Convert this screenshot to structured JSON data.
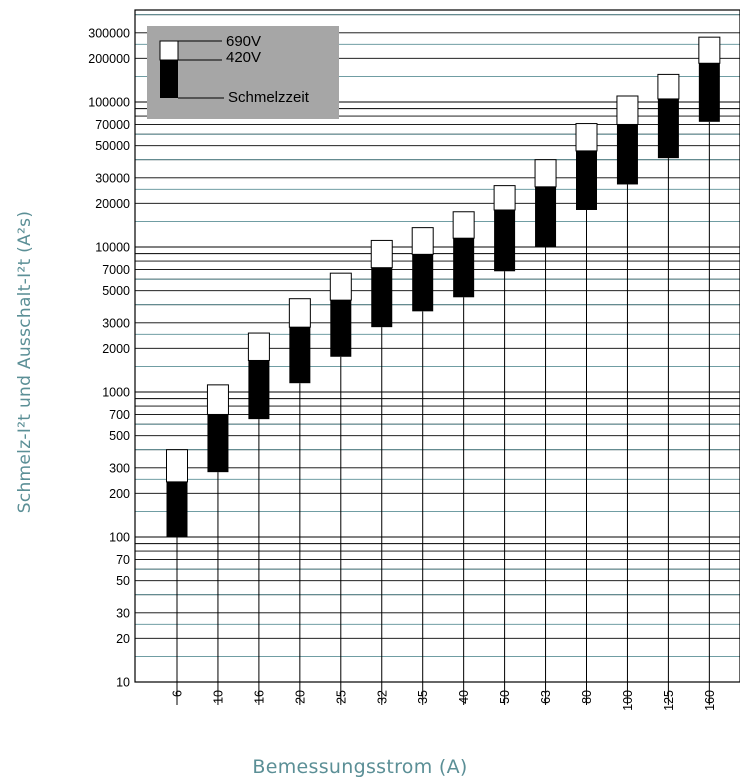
{
  "chart_data": {
    "type": "bar",
    "subtype": "floating-range",
    "xlabel": "Bemessungsstrom (A)",
    "ylabel": "Schmelz-I²t und Ausschalt-I²t (A²s)",
    "yscale": "log",
    "ylim": [
      10,
      400000
    ],
    "grid": true,
    "legend": {
      "position": "top-left",
      "entries": [
        "690V",
        "420V",
        "Schmelzzeit"
      ]
    },
    "y_tick_labels": [
      "300000",
      "200000",
      "100000",
      "70000",
      "50000",
      "30000",
      "20000",
      "10000",
      "7000",
      "5000",
      "3000",
      "2000",
      "1000",
      "700",
      "500",
      "300",
      "200",
      "100",
      "70",
      "50",
      "30",
      "20",
      "10"
    ],
    "categories": [
      "6",
      "10",
      "16",
      "20",
      "25",
      "32",
      "35",
      "40",
      "50",
      "63",
      "80",
      "100",
      "125",
      "160"
    ],
    "series": [
      {
        "name": "Schmelzzeit",
        "values": [
          100,
          280,
          650,
          1150,
          1750,
          2800,
          3600,
          4500,
          6800,
          10000,
          18000,
          27000,
          41000,
          73000
        ]
      },
      {
        "name": "420V",
        "values": [
          240,
          700,
          1650,
          2800,
          4300,
          7200,
          8900,
          11500,
          18000,
          26000,
          46000,
          70000,
          105000,
          185000
        ]
      },
      {
        "name": "690V",
        "values": [
          400,
          1120,
          2550,
          4400,
          6600,
          11100,
          13600,
          17500,
          26500,
          40000,
          71000,
          110000,
          155000,
          280000
        ]
      }
    ]
  },
  "colors": {
    "grid_black": "#000000",
    "grid_teal": "#5b8f96",
    "label_teal": "#5b8f96",
    "legend_bg": "#a6a6a6"
  }
}
